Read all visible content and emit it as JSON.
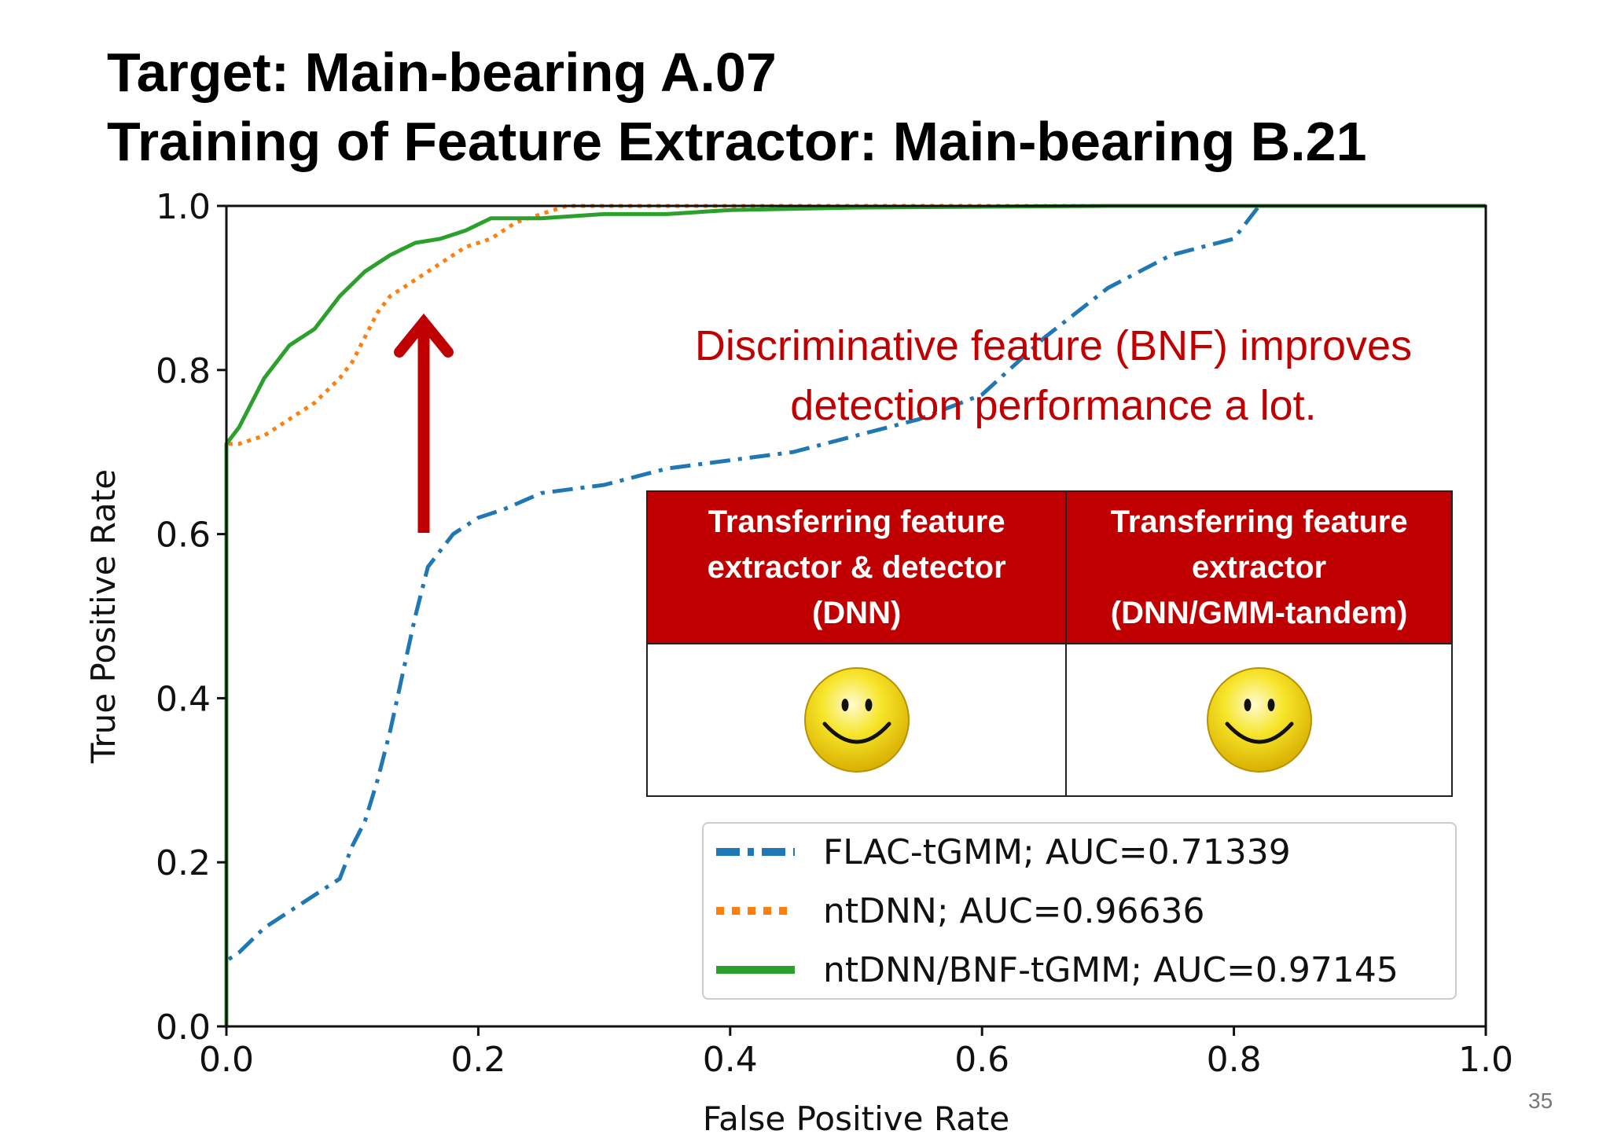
{
  "slide": {
    "title_line1": "Target: Main-bearing A.07",
    "title_line2": "Training of Feature Extractor: Main-bearing B.21",
    "page_number": "35"
  },
  "annotation": {
    "line1": "Discriminative feature (BNF) improves",
    "line2": "detection performance a lot.",
    "arrow_color": "#c00000"
  },
  "table": {
    "header1_line1": "Transferring feature",
    "header1_line2": "extractor & detector",
    "header1_line3": "(DNN)",
    "header2_line1": "Transferring feature",
    "header2_line2": "extractor",
    "header2_line3": "(DNN/GMM-tandem)",
    "cell1_icon": "smiley-face-icon",
    "cell2_icon": "smiley-face-icon"
  },
  "chart_data": {
    "type": "line",
    "xlabel": "False Positive Rate",
    "ylabel": "True Positive Rate",
    "xlim": [
      0.0,
      1.0
    ],
    "ylim": [
      0.0,
      1.0
    ],
    "xticks": [
      "0.0",
      "0.2",
      "0.4",
      "0.6",
      "0.8",
      "1.0"
    ],
    "yticks": [
      "0.0",
      "0.2",
      "0.4",
      "0.6",
      "0.8",
      "1.0"
    ],
    "grid": false,
    "legend_position": "bottom-right",
    "series": [
      {
        "name": "FLAC-tGMM; AUC=0.71339",
        "color": "#1f77b4",
        "style": "dashdot",
        "x": [
          0.0,
          0.0,
          0.01,
          0.03,
          0.05,
          0.07,
          0.09,
          0.1,
          0.11,
          0.12,
          0.13,
          0.14,
          0.15,
          0.16,
          0.17,
          0.18,
          0.19,
          0.2,
          0.22,
          0.25,
          0.3,
          0.35,
          0.4,
          0.45,
          0.5,
          0.55,
          0.6,
          0.65,
          0.7,
          0.75,
          0.8,
          0.81,
          0.82,
          1.0
        ],
        "y": [
          0.0,
          0.08,
          0.09,
          0.12,
          0.14,
          0.16,
          0.18,
          0.22,
          0.25,
          0.3,
          0.36,
          0.43,
          0.5,
          0.56,
          0.58,
          0.6,
          0.61,
          0.62,
          0.63,
          0.65,
          0.66,
          0.68,
          0.69,
          0.7,
          0.72,
          0.74,
          0.77,
          0.84,
          0.9,
          0.94,
          0.96,
          0.98,
          1.0,
          1.0
        ]
      },
      {
        "name": "ntDNN; AUC=0.96636",
        "color": "#ff7f0e",
        "style": "dotted",
        "x": [
          0.0,
          0.0,
          0.01,
          0.03,
          0.05,
          0.07,
          0.09,
          0.1,
          0.11,
          0.12,
          0.13,
          0.15,
          0.17,
          0.19,
          0.21,
          0.23,
          0.25,
          0.27,
          0.3,
          0.35,
          1.0
        ],
        "y": [
          0.0,
          0.71,
          0.71,
          0.72,
          0.74,
          0.76,
          0.79,
          0.81,
          0.84,
          0.87,
          0.89,
          0.91,
          0.93,
          0.95,
          0.96,
          0.98,
          0.99,
          1.0,
          1.0,
          1.0,
          1.0
        ]
      },
      {
        "name": "ntDNN/BNF-tGMM; AUC=0.97145",
        "color": "#2ca02c",
        "style": "solid",
        "x": [
          0.0,
          0.0,
          0.01,
          0.02,
          0.03,
          0.05,
          0.07,
          0.09,
          0.11,
          0.13,
          0.15,
          0.17,
          0.19,
          0.21,
          0.25,
          0.3,
          0.35,
          0.4,
          0.5,
          0.6,
          0.7,
          1.0
        ],
        "y": [
          0.0,
          0.71,
          0.73,
          0.76,
          0.79,
          0.83,
          0.85,
          0.89,
          0.92,
          0.94,
          0.955,
          0.96,
          0.97,
          0.985,
          0.985,
          0.99,
          0.99,
          0.995,
          0.998,
          0.999,
          1.0,
          1.0
        ]
      }
    ]
  }
}
